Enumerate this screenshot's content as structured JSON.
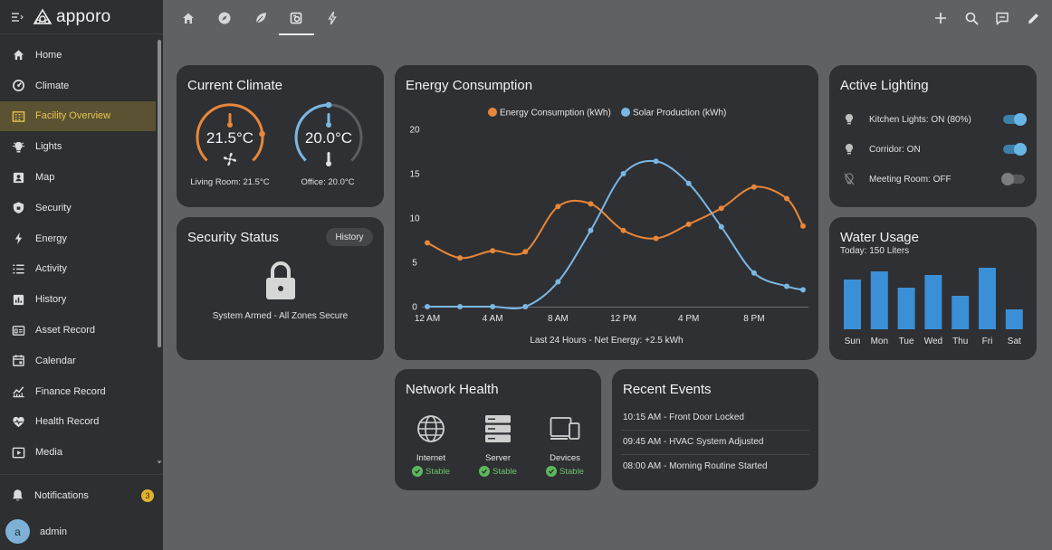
{
  "app": {
    "name": "apporo"
  },
  "sidebar": {
    "items": [
      {
        "label": "Home",
        "icon": "home-icon"
      },
      {
        "label": "Climate",
        "icon": "climate-icon"
      },
      {
        "label": "Facility Overview",
        "icon": "facility-icon",
        "active": true
      },
      {
        "label": "Lights",
        "icon": "lights-icon"
      },
      {
        "label": "Map",
        "icon": "map-icon"
      },
      {
        "label": "Security",
        "icon": "security-icon"
      },
      {
        "label": "Energy",
        "icon": "energy-icon"
      },
      {
        "label": "Activity",
        "icon": "activity-icon"
      },
      {
        "label": "History",
        "icon": "history-icon"
      },
      {
        "label": "Asset Record",
        "icon": "asset-icon"
      },
      {
        "label": "Calendar",
        "icon": "calendar-icon"
      },
      {
        "label": "Finance Record",
        "icon": "finance-icon"
      },
      {
        "label": "Health Record",
        "icon": "health-icon"
      },
      {
        "label": "Media",
        "icon": "media-icon"
      }
    ],
    "notifications": {
      "label": "Notifications",
      "count": "3"
    },
    "user": {
      "initial": "a",
      "name": "admin"
    }
  },
  "colors": {
    "accent": "#e8c34f",
    "orange": "#e8873a",
    "blue": "#7ab7e3",
    "green": "#5cb85c"
  },
  "climate": {
    "title": "Current Climate",
    "living": {
      "value": "21.5°C",
      "label": "Living Room: 21.5°C"
    },
    "office": {
      "value": "20.0°C",
      "label": "Office: 20.0°C"
    }
  },
  "security": {
    "title": "Security Status",
    "history_label": "History",
    "status": "System Armed - All Zones Secure"
  },
  "energy": {
    "title": "Energy Consumption",
    "footer": "Last 24 Hours - Net Energy: +2.5 kWh"
  },
  "chart_data": {
    "type": "line",
    "title": "Energy Consumption",
    "x": [
      0,
      2,
      4,
      6,
      8,
      10,
      12,
      14,
      16,
      18,
      20,
      22,
      23
    ],
    "xticks": [
      {
        "value": 0,
        "label": "12 AM"
      },
      {
        "value": 4,
        "label": "4 AM"
      },
      {
        "value": 8,
        "label": "8 AM"
      },
      {
        "value": 12,
        "label": "12 PM"
      },
      {
        "value": 16,
        "label": "4 PM"
      },
      {
        "value": 20,
        "label": "8 PM"
      }
    ],
    "yticks": [
      0,
      5,
      10,
      15,
      20
    ],
    "ylim": [
      0,
      20
    ],
    "legend_position": "top",
    "grid": false,
    "series": [
      {
        "name": "Energy Consumption (kWh)",
        "color": "#e8873a",
        "values": [
          7.2,
          5.5,
          6.3,
          6.2,
          11.3,
          11.6,
          8.6,
          7.7,
          9.3,
          11.1,
          13.5,
          12.2,
          9.1
        ]
      },
      {
        "name": "Solar Production (kWh)",
        "color": "#7ab7e3",
        "values": [
          0,
          0,
          0,
          0,
          2.8,
          8.6,
          15.0,
          16.4,
          13.9,
          9.0,
          3.8,
          2.3,
          1.9
        ]
      }
    ]
  },
  "lighting": {
    "title": "Active Lighting",
    "items": [
      {
        "label": "Kitchen Lights: ON (80%)",
        "on": true
      },
      {
        "label": "Corridor: ON",
        "on": true
      },
      {
        "label": "Meeting Room: OFF",
        "on": false
      }
    ]
  },
  "water": {
    "title": "Water Usage",
    "subtitle": "Today: 150 Liters",
    "days": [
      "Sun",
      "Mon",
      "Tue",
      "Wed",
      "Thu",
      "Fri",
      "Sat"
    ],
    "values": [
      55,
      64,
      46,
      60,
      37,
      68,
      22
    ],
    "max": 75
  },
  "network": {
    "title": "Network Health",
    "items": [
      {
        "name": "Internet",
        "status": "Stable",
        "icon": "globe-icon"
      },
      {
        "name": "Server",
        "status": "Stable",
        "icon": "server-icon"
      },
      {
        "name": "Devices",
        "status": "Stable",
        "icon": "devices-icon"
      }
    ]
  },
  "events": {
    "title": "Recent Events",
    "items": [
      "10:15 AM - Front Door Locked",
      "09:45 AM - HVAC System Adjusted",
      "08:00 AM - Morning Routine Started"
    ]
  }
}
